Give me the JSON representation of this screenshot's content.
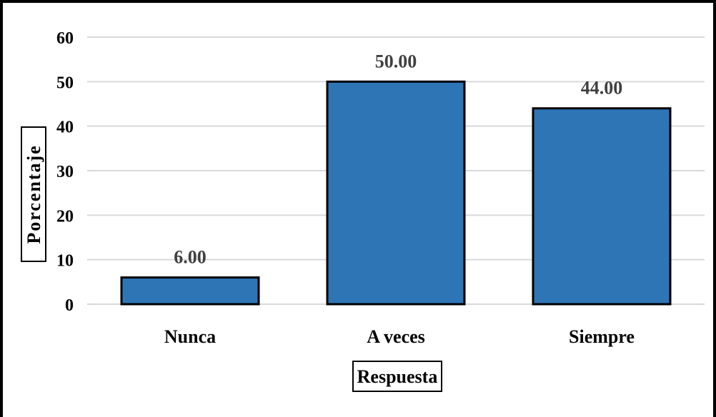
{
  "chart_data": {
    "type": "bar",
    "title": "",
    "categories": [
      "Nunca",
      "A veces",
      "Siempre"
    ],
    "values": [
      6.0,
      50.0,
      44.0
    ],
    "data_labels": [
      "6.00",
      "50.00",
      "44.00"
    ],
    "xlabel": "Respuesta",
    "ylabel": "Porcentaje",
    "ylim": [
      0,
      60
    ],
    "yticks": [
      "0",
      "10",
      "20",
      "30",
      "40",
      "50",
      "60"
    ],
    "grid": true,
    "legend": "none",
    "colors": {
      "bar_fill": "#2e75b6",
      "bar_stroke": "#000000",
      "gridline": "#d9d9d9",
      "data_label": "#404040",
      "frame": "#000000"
    }
  }
}
